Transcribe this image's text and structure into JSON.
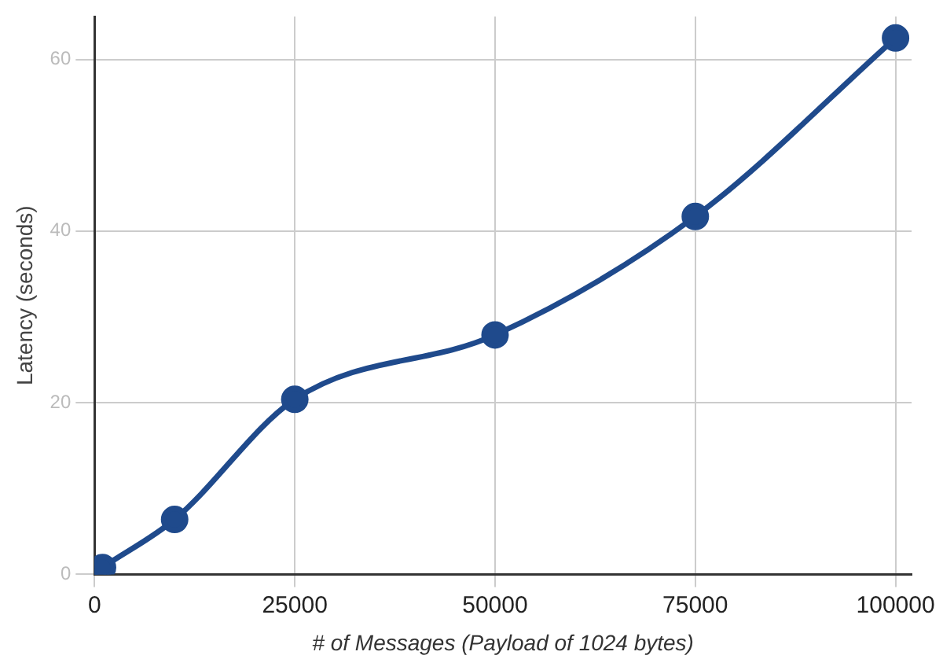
{
  "chart_data": {
    "type": "line",
    "xlabel": "# of Messages (Payload of 1024 bytes)",
    "ylabel": "Latency (seconds)",
    "x": [
      100,
      1000,
      10000,
      25000,
      50000,
      75000,
      100000
    ],
    "series": [
      {
        "color": "#1f4a8c",
        "values": [
          0.2,
          0.8,
          6.4,
          20.4,
          27.9,
          41.7,
          62.5
        ]
      }
    ],
    "xlim": [
      0,
      102000
    ],
    "xticks": [
      0,
      25000,
      50000,
      75000,
      100000
    ],
    "ylim": [
      0,
      65
    ],
    "yticks": [
      0,
      20,
      40,
      60
    ],
    "grid": true,
    "marker": "circle",
    "line_style": "solid",
    "legend": false
  }
}
